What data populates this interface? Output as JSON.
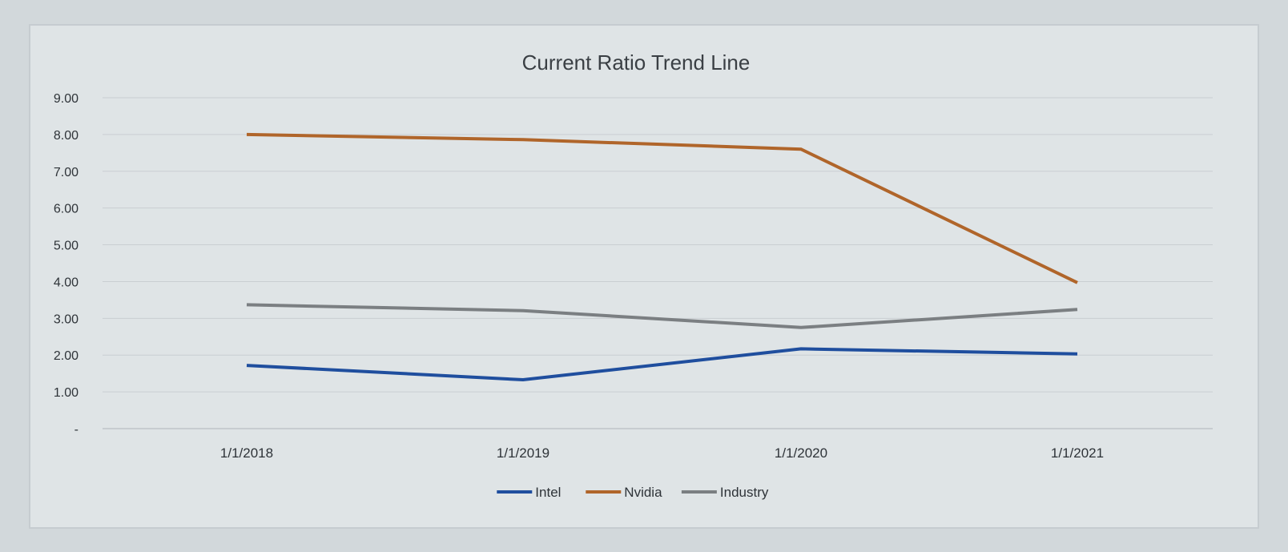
{
  "chart_data": {
    "type": "line",
    "title": "Current Ratio Trend Line",
    "xlabel": "",
    "ylabel": "",
    "categories": [
      "1/1/2018",
      "1/1/2019",
      "1/1/2020",
      "1/1/2021"
    ],
    "y_ticks": [
      "-",
      "1.00",
      "2.00",
      "3.00",
      "4.00",
      "5.00",
      "6.00",
      "7.00",
      "8.00",
      "9.00"
    ],
    "ylim": [
      0,
      9
    ],
    "grid": true,
    "legend_position": "bottom",
    "series": [
      {
        "name": "Intel",
        "color": "#1f4e9e",
        "values": [
          1.72,
          1.33,
          2.17,
          2.03
        ]
      },
      {
        "name": "Nvidia",
        "color": "#b0652a",
        "values": [
          8.0,
          7.86,
          7.6,
          3.97
        ]
      },
      {
        "name": "Industry",
        "color": "#7b7f82",
        "values": [
          3.37,
          3.21,
          2.75,
          3.24
        ]
      }
    ]
  }
}
